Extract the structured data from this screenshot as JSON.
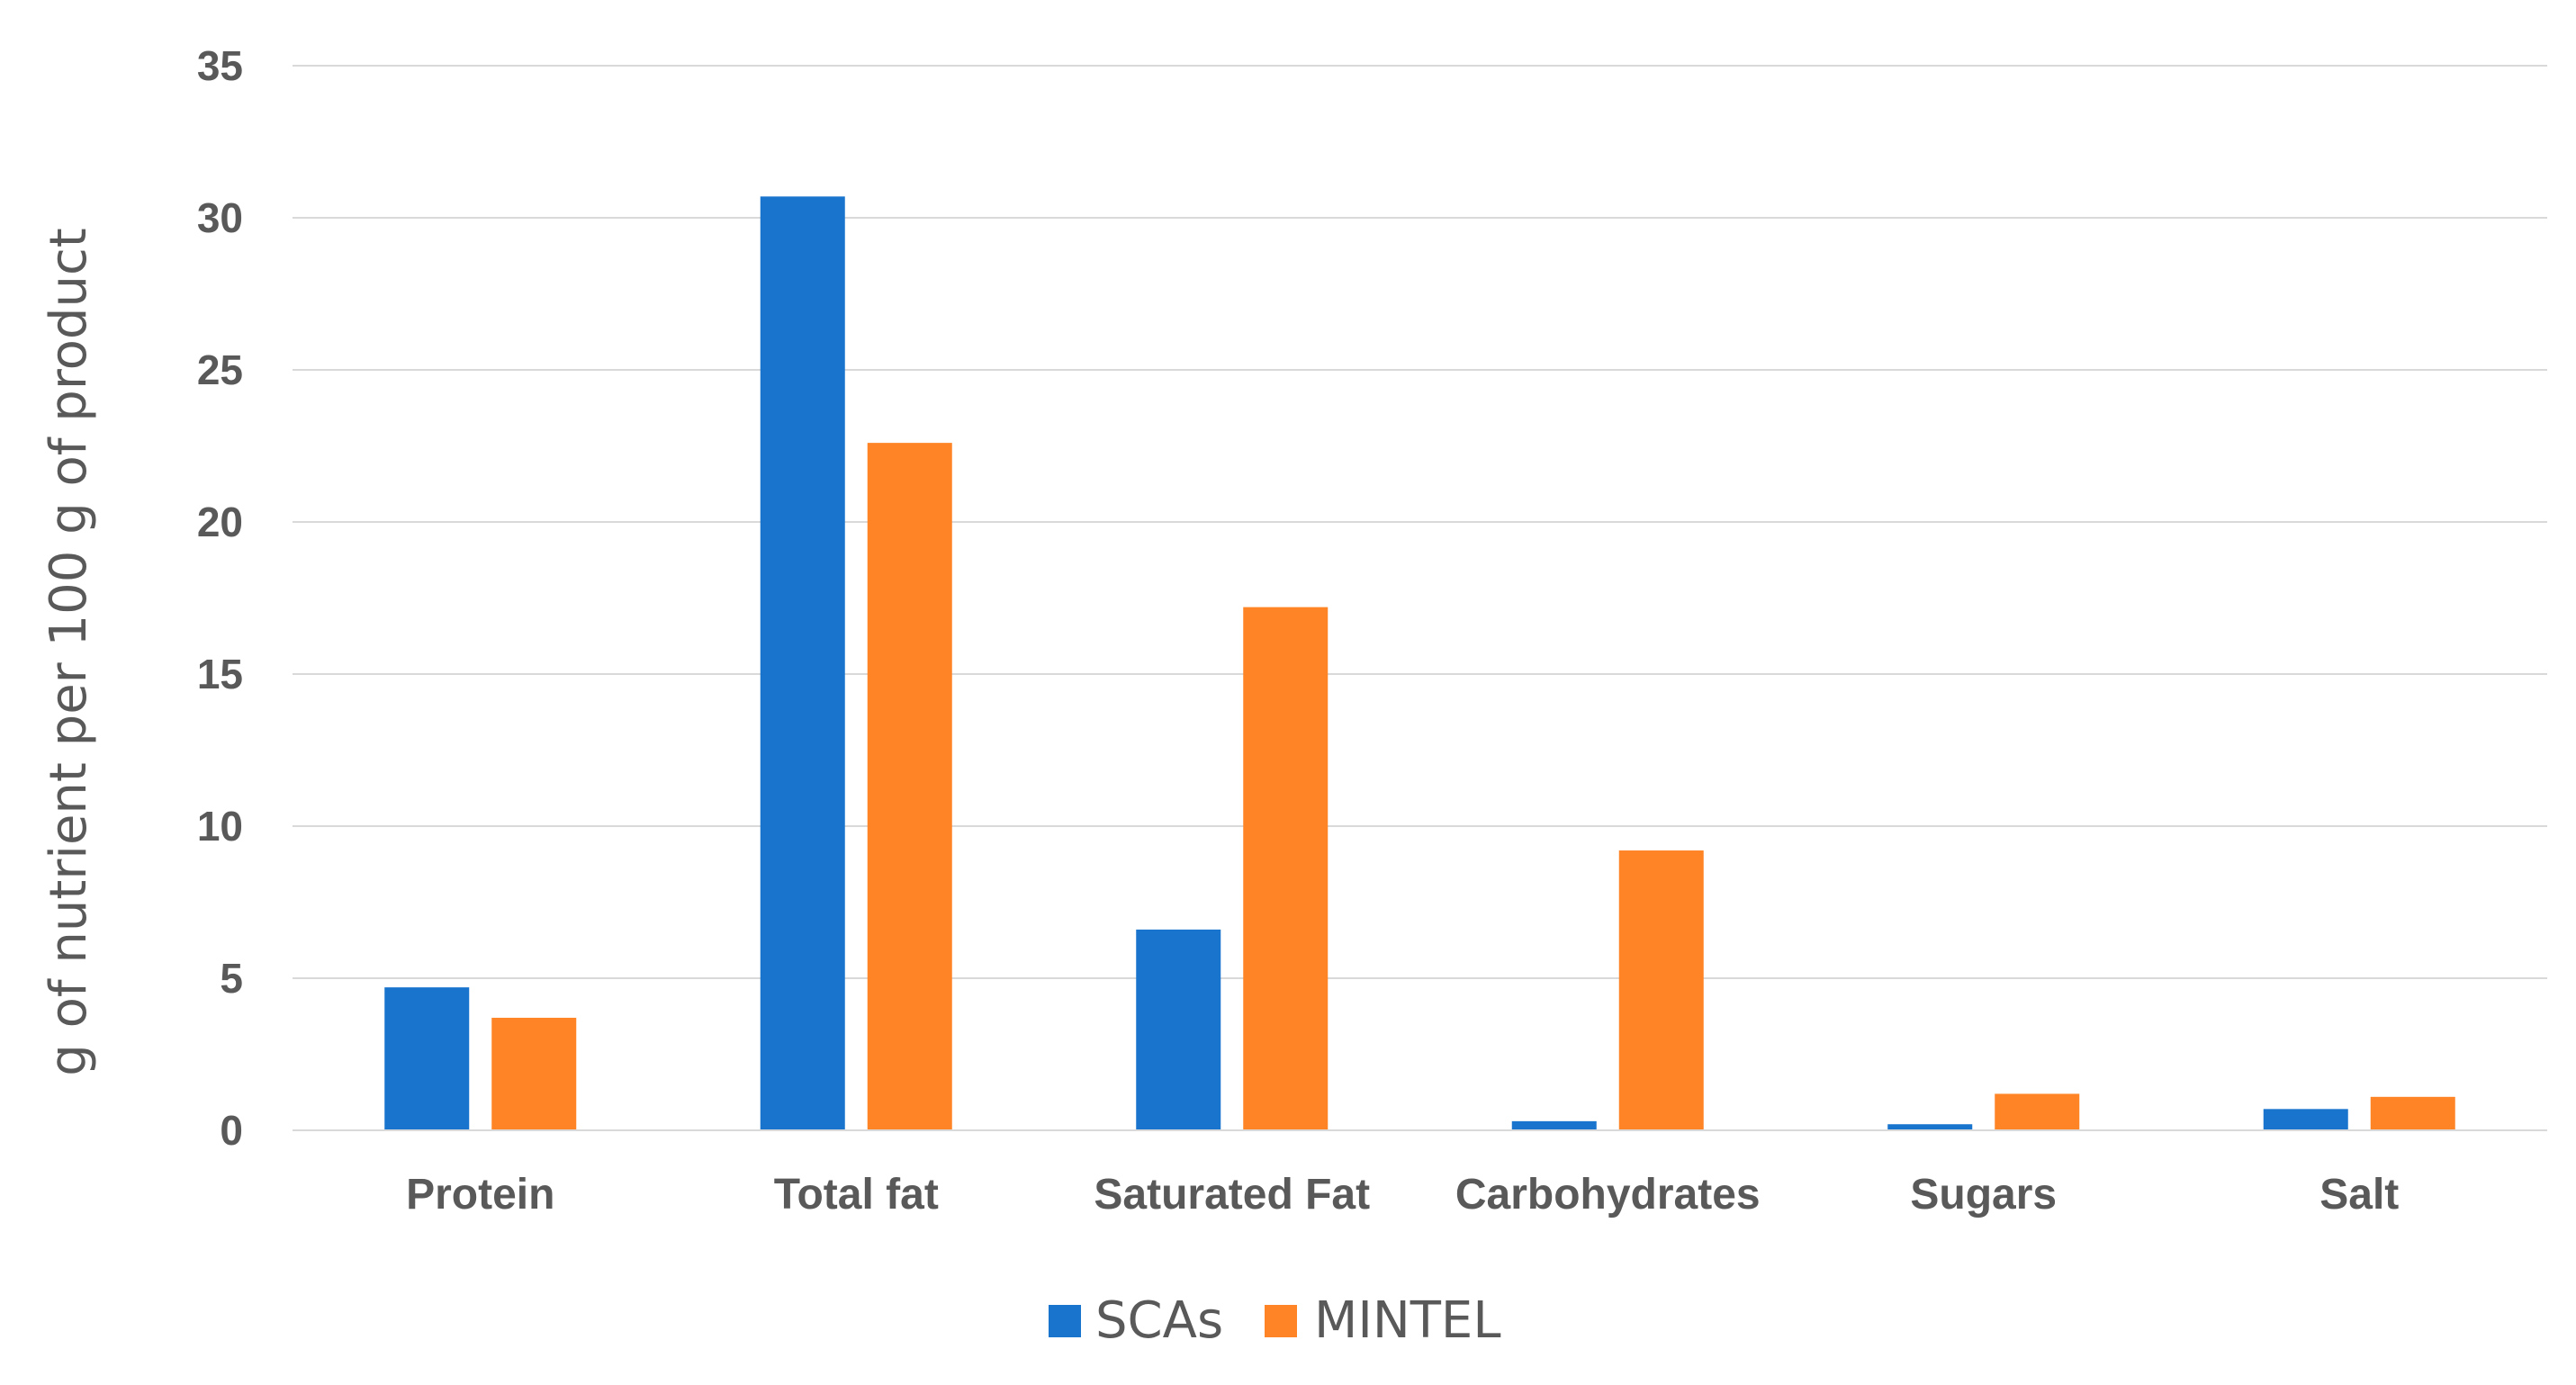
{
  "chart_data": {
    "type": "bar",
    "title": "",
    "xlabel": "",
    "ylabel": "g of nutrient per 100 g of product",
    "ylim": [
      0,
      35
    ],
    "yticks": [
      0,
      5,
      10,
      15,
      20,
      25,
      30,
      35
    ],
    "grid": true,
    "legend_position": "bottom-center",
    "categories": [
      "Protein",
      "Total fat",
      "Saturated Fat",
      "Carbohydrates",
      "Sugars",
      "Salt"
    ],
    "series": [
      {
        "name": "SCAs",
        "color": "#1874CD",
        "values": [
          4.7,
          30.7,
          6.6,
          0.3,
          0.2,
          0.7
        ]
      },
      {
        "name": "MINTEL",
        "color": "#FF8425",
        "values": [
          3.7,
          22.6,
          17.2,
          9.2,
          1.2,
          1.1
        ]
      }
    ]
  }
}
